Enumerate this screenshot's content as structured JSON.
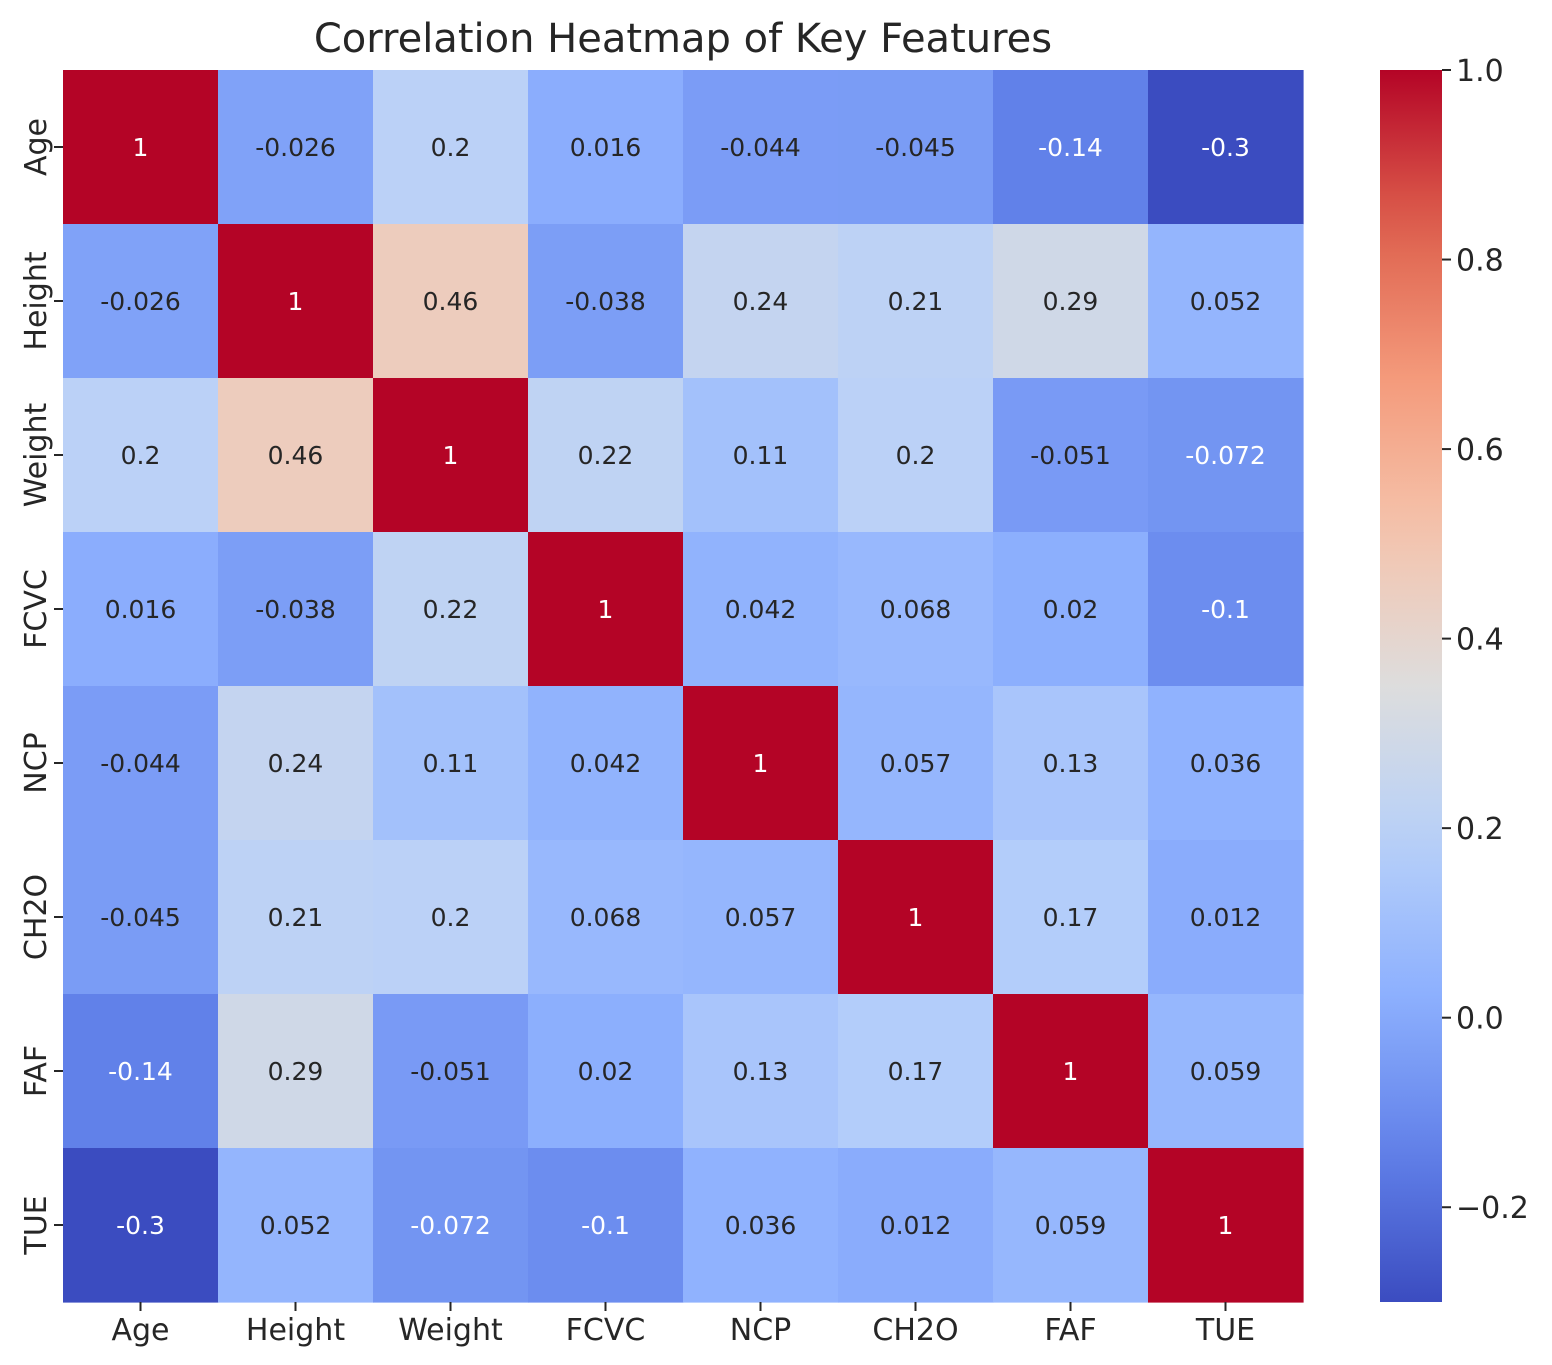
{
  "chart_data": {
    "type": "heatmap",
    "title": "Correlation Heatmap of Key Features",
    "xlabel": "",
    "ylabel": "",
    "x_categories": [
      "Age",
      "Height",
      "Weight",
      "FCVC",
      "NCP",
      "CH2O",
      "FAF",
      "TUE"
    ],
    "y_categories": [
      "Age",
      "Height",
      "Weight",
      "FCVC",
      "NCP",
      "CH2O",
      "FAF",
      "TUE"
    ],
    "values": [
      [
        1,
        -0.026,
        0.2,
        0.016,
        -0.044,
        -0.045,
        -0.14,
        -0.3
      ],
      [
        -0.026,
        1,
        0.46,
        -0.038,
        0.24,
        0.21,
        0.29,
        0.052
      ],
      [
        0.2,
        0.46,
        1,
        0.22,
        0.11,
        0.2,
        -0.051,
        -0.072
      ],
      [
        0.016,
        -0.038,
        0.22,
        1,
        0.042,
        0.068,
        0.02,
        -0.1
      ],
      [
        -0.044,
        0.24,
        0.11,
        0.042,
        1,
        0.057,
        0.13,
        0.036
      ],
      [
        -0.045,
        0.21,
        0.2,
        0.068,
        0.057,
        1,
        0.17,
        0.012
      ],
      [
        -0.14,
        0.29,
        -0.051,
        0.02,
        0.13,
        0.17,
        1,
        0.059
      ],
      [
        -0.3,
        0.052,
        -0.072,
        -0.1,
        0.036,
        0.012,
        0.059,
        1
      ]
    ],
    "annotations": [
      [
        "1",
        "-0.026",
        "0.2",
        "0.016",
        "-0.044",
        "-0.045",
        "-0.14",
        "-0.3"
      ],
      [
        "-0.026",
        "1",
        "0.46",
        "-0.038",
        "0.24",
        "0.21",
        "0.29",
        "0.052"
      ],
      [
        "0.2",
        "0.46",
        "1",
        "0.22",
        "0.11",
        "0.2",
        "-0.051",
        "-0.072"
      ],
      [
        "0.016",
        "-0.038",
        "0.22",
        "1",
        "0.042",
        "0.068",
        "0.02",
        "-0.1"
      ],
      [
        "-0.044",
        "0.24",
        "0.11",
        "0.042",
        "1",
        "0.057",
        "0.13",
        "0.036"
      ],
      [
        "-0.045",
        "0.21",
        "0.2",
        "0.068",
        "0.057",
        "1",
        "0.17",
        "0.012"
      ],
      [
        "-0.14",
        "0.29",
        "-0.051",
        "0.02",
        "0.13",
        "0.17",
        "1",
        "0.059"
      ],
      [
        "-0.3",
        "0.052",
        "-0.072",
        "-0.1",
        "0.036",
        "0.012",
        "0.059",
        "1"
      ]
    ],
    "colormap": "coolwarm",
    "color_range": [
      -0.3,
      1.0
    ],
    "colorbar": {
      "ticks": [
        -0.2,
        0.0,
        0.2,
        0.4,
        0.6,
        0.8,
        1.0
      ],
      "tick_labels": [
        "−0.2",
        "0.0",
        "0.2",
        "0.4",
        "0.6",
        "0.8",
        "1.0"
      ]
    },
    "grid": false,
    "legend": "colorbar-right"
  }
}
